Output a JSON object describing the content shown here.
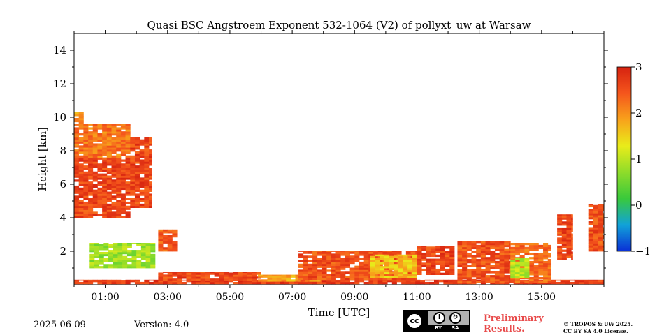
{
  "chart_data": {
    "type": "heatmap",
    "title": "Quasi BSC Angstroem Exponent 532-1064 (V2) of pollyxt_uw at Warsaw",
    "xlabel": "Time [UTC]",
    "ylabel": "Height [km]",
    "xlim_hours": [
      0.0,
      17.0
    ],
    "ylim_km": [
      0.0,
      15.0
    ],
    "xticks_major": [
      1,
      3,
      5,
      7,
      9,
      11,
      13,
      15
    ],
    "xtick_labels": [
      "01:00",
      "03:00",
      "05:00",
      "07:00",
      "09:00",
      "11:00",
      "13:00",
      "15:00"
    ],
    "yticks": [
      2,
      4,
      6,
      8,
      10,
      12,
      14
    ],
    "ytick_labels": [
      "2",
      "4",
      "6",
      "8",
      "10",
      "12",
      "14"
    ],
    "colorbar": {
      "vmin": -1,
      "vmax": 3,
      "ticks": [
        -1,
        0,
        1,
        2,
        3
      ],
      "tick_labels": [
        "−1",
        "0",
        "1",
        "2",
        "3"
      ],
      "colors": [
        "#0a2fd6",
        "#11a2d8",
        "#39c93b",
        "#8fdc2a",
        "#e9ec1a",
        "#f8a21b",
        "#f5561c",
        "#d62210"
      ]
    },
    "regions": [
      {
        "t0": 0.0,
        "t1": 1.8,
        "h0": 4.0,
        "h1": 7.6,
        "value": 2.6
      },
      {
        "t0": 0.0,
        "t1": 1.8,
        "h0": 7.6,
        "h1": 9.6,
        "value": 2.2
      },
      {
        "t0": 0.0,
        "t1": 0.3,
        "h0": 9.6,
        "h1": 10.3,
        "value": 1.9
      },
      {
        "t0": 1.8,
        "t1": 2.5,
        "h0": 4.6,
        "h1": 8.8,
        "value": 2.6
      },
      {
        "t0": 2.7,
        "t1": 3.3,
        "h0": 2.0,
        "h1": 3.3,
        "value": 2.4
      },
      {
        "t0": 0.5,
        "t1": 2.6,
        "h0": 1.0,
        "h1": 2.5,
        "value": 0.8
      },
      {
        "t0": 0.0,
        "t1": 17.0,
        "h0": 0.05,
        "h1": 0.3,
        "value": 2.7
      },
      {
        "t0": 2.7,
        "t1": 6.0,
        "h0": 0.25,
        "h1": 0.75,
        "value": 2.6
      },
      {
        "t0": 5.9,
        "t1": 7.9,
        "h0": 0.2,
        "h1": 0.6,
        "value": 1.8
      },
      {
        "t0": 7.2,
        "t1": 11.0,
        "h0": 0.3,
        "h1": 2.0,
        "value": 2.5
      },
      {
        "t0": 9.5,
        "t1": 11.0,
        "h0": 0.4,
        "h1": 1.8,
        "value": 1.6
      },
      {
        "t0": 11.0,
        "t1": 12.2,
        "h0": 0.6,
        "h1": 2.3,
        "value": 2.6
      },
      {
        "t0": 12.3,
        "t1": 14.0,
        "h0": 0.1,
        "h1": 2.6,
        "value": 2.5
      },
      {
        "t0": 14.0,
        "t1": 15.3,
        "h0": 0.1,
        "h1": 2.5,
        "value": 2.3
      },
      {
        "t0": 14.0,
        "t1": 14.6,
        "h0": 0.4,
        "h1": 1.6,
        "value": 1.0
      },
      {
        "t0": 15.5,
        "t1": 16.0,
        "h0": 1.5,
        "h1": 4.2,
        "value": 2.6
      },
      {
        "t0": 16.5,
        "t1": 17.0,
        "h0": 2.0,
        "h1": 4.8,
        "value": 2.5
      }
    ]
  },
  "footer": {
    "date": "2025-06-09",
    "version": "Version: 4.0",
    "preliminary_line1": "Preliminary",
    "preliminary_line2": "Results.",
    "copyright_line1": "© TROPOS & UW 2025.",
    "copyright_line2": "CC BY SA 4.0 License.",
    "cc_mark": "cc",
    "cc_by": "BY",
    "cc_sa": "SA"
  }
}
